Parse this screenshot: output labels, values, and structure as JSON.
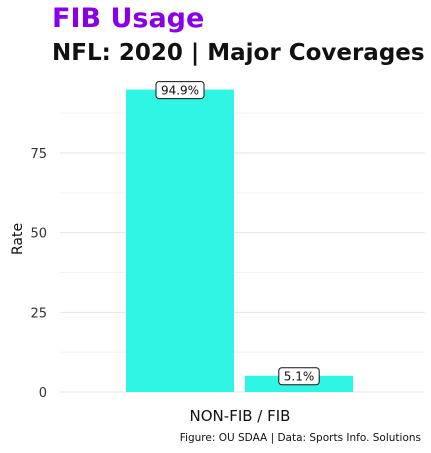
{
  "chart_data": {
    "type": "bar",
    "title": "FIB Usage",
    "subtitle": "NFL: 2020 | Major Coverages",
    "xlabel": "NON-FIB / FIB",
    "ylabel": "Rate",
    "caption": "Figure: OU SDAA | Data: Sports Info. Solutions",
    "categories": [
      "NON-FIB",
      "FIB"
    ],
    "values": [
      94.9,
      5.1
    ],
    "data_labels": [
      "94.9%",
      "5.1%"
    ],
    "yticks": [
      0,
      25,
      50,
      75
    ],
    "ylim": [
      0,
      100
    ],
    "grid": true,
    "legend": "none",
    "bar_color": "#2ef5e4"
  }
}
